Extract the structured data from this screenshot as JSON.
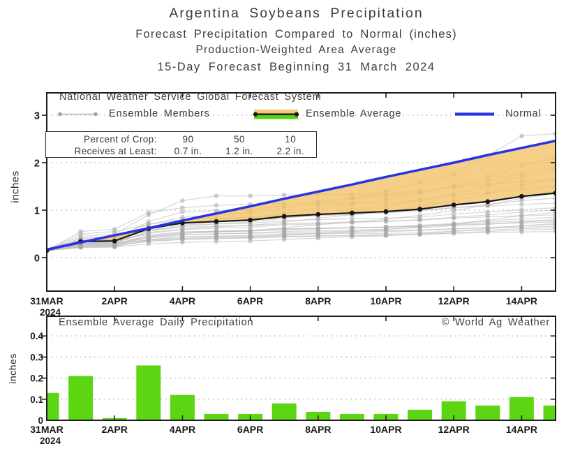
{
  "page": {
    "title": "Argentina Soybeans Precipitation",
    "subtitles": [
      "Forecast Precipitation Compared to Normal (inches)",
      "Production-Weighted Area Average",
      "15-Day Forecast Beginning 31 March 2024"
    ]
  },
  "top_chart": {
    "caption": "National Weather Service Global Forecast System",
    "legend": {
      "members_label": "Ensemble Members",
      "average_label": "Ensemble Average",
      "normal_label": "Normal"
    },
    "crop_box": {
      "row1_label": "Percent of Crop:",
      "row2_label": "Receives at Least:",
      "percents": [
        "90",
        "50",
        "10"
      ],
      "amounts": [
        "0.7 in.",
        "1.2 in.",
        "2.2 in."
      ]
    },
    "ylabel": "inches"
  },
  "bottom_chart": {
    "title": "Ensemble Average Daily Precipitation",
    "watermark": "© World Ag Weather",
    "ylabel": "inches"
  },
  "axis": {
    "x_tick_labels": [
      "31MAR",
      "2APR",
      "4APR",
      "6APR",
      "8APR",
      "10APR",
      "12APR",
      "14APR"
    ],
    "x_year_label": "2024"
  },
  "colors": {
    "normal": "#2633e6",
    "average": "#161616",
    "member_line": "#b6b6b6",
    "member_dot": "#a3a3a3",
    "deficit_fill": "#f3c269",
    "surplus_green": "#54d40f",
    "bar": "#5cd513",
    "grid": "#c4c4c4",
    "frame": "#1c1c1c",
    "text": "#3d3d3d"
  },
  "chart_data": [
    {
      "type": "line",
      "categories": [
        "31MAR",
        "1APR",
        "2APR",
        "3APR",
        "4APR",
        "5APR",
        "6APR",
        "7APR",
        "8APR",
        "9APR",
        "10APR",
        "11APR",
        "12APR",
        "13APR",
        "14APR",
        "15APR"
      ],
      "ylabel": "inches",
      "yticks": [
        0,
        1,
        2,
        3
      ],
      "ylim": [
        -0.7,
        3.45
      ],
      "series": [
        {
          "name": "Normal",
          "color_key": "normal",
          "values": [
            0.17,
            0.32,
            0.47,
            0.62,
            0.78,
            0.93,
            1.08,
            1.24,
            1.39,
            1.54,
            1.7,
            1.85,
            2.0,
            2.16,
            2.31,
            2.46
          ]
        },
        {
          "name": "Ensemble Average",
          "color_key": "average",
          "values": [
            0.15,
            0.34,
            0.35,
            0.61,
            0.73,
            0.76,
            0.79,
            0.87,
            0.91,
            0.94,
            0.97,
            1.02,
            1.11,
            1.18,
            1.29,
            1.36
          ]
        }
      ],
      "ensemble_members": [
        [
          0.15,
          0.29,
          0.31,
          0.37,
          0.41,
          0.42,
          0.43,
          0.45,
          0.46,
          0.47,
          0.48,
          0.49,
          0.51,
          0.53,
          0.54,
          0.55
        ],
        [
          0.15,
          0.24,
          0.25,
          0.34,
          0.38,
          0.4,
          0.41,
          0.43,
          0.45,
          0.46,
          0.47,
          0.49,
          0.52,
          0.55,
          0.58,
          0.6
        ],
        [
          0.15,
          0.22,
          0.23,
          0.37,
          0.44,
          0.45,
          0.45,
          0.49,
          0.5,
          0.51,
          0.51,
          0.52,
          0.56,
          0.58,
          0.61,
          0.63
        ],
        [
          0.15,
          0.33,
          0.35,
          0.43,
          0.48,
          0.5,
          0.51,
          0.53,
          0.54,
          0.56,
          0.57,
          0.58,
          0.61,
          0.63,
          0.64,
          0.66
        ],
        [
          0.15,
          0.26,
          0.27,
          0.38,
          0.44,
          0.45,
          0.47,
          0.5,
          0.51,
          0.53,
          0.55,
          0.57,
          0.6,
          0.63,
          0.67,
          0.7
        ],
        [
          0.15,
          0.21,
          0.22,
          0.29,
          0.32,
          0.34,
          0.35,
          0.38,
          0.41,
          0.44,
          0.46,
          0.5,
          0.55,
          0.61,
          0.67,
          0.72
        ],
        [
          0.15,
          0.36,
          0.39,
          0.48,
          0.54,
          0.56,
          0.57,
          0.59,
          0.61,
          0.63,
          0.64,
          0.66,
          0.69,
          0.71,
          0.73,
          0.75
        ],
        [
          0.15,
          0.28,
          0.29,
          0.41,
          0.48,
          0.5,
          0.52,
          0.55,
          0.57,
          0.58,
          0.6,
          0.63,
          0.67,
          0.7,
          0.75,
          0.78
        ],
        [
          0.15,
          0.25,
          0.26,
          0.44,
          0.54,
          0.55,
          0.56,
          0.61,
          0.62,
          0.63,
          0.64,
          0.66,
          0.7,
          0.74,
          0.77,
          0.8
        ],
        [
          0.15,
          0.29,
          0.3,
          0.44,
          0.51,
          0.54,
          0.56,
          0.59,
          0.61,
          0.63,
          0.65,
          0.68,
          0.72,
          0.77,
          0.82,
          0.85
        ],
        [
          0.15,
          0.41,
          0.45,
          0.56,
          0.64,
          0.66,
          0.68,
          0.71,
          0.73,
          0.75,
          0.77,
          0.79,
          0.83,
          0.86,
          0.88,
          0.9
        ],
        [
          0.15,
          0.23,
          0.25,
          0.35,
          0.39,
          0.41,
          0.43,
          0.47,
          0.51,
          0.55,
          0.59,
          0.65,
          0.71,
          0.79,
          0.89,
          0.95
        ],
        [
          0.15,
          0.32,
          0.34,
          0.51,
          0.59,
          0.62,
          0.64,
          0.69,
          0.71,
          0.74,
          0.76,
          0.8,
          0.85,
          0.9,
          0.96,
          1.0
        ],
        [
          0.15,
          0.29,
          0.3,
          0.56,
          0.69,
          0.71,
          0.72,
          0.78,
          0.8,
          0.82,
          0.83,
          0.85,
          0.92,
          0.96,
          1.01,
          1.05
        ],
        [
          0.15,
          0.5,
          0.55,
          0.7,
          0.8,
          0.83,
          0.85,
          0.89,
          0.92,
          0.95,
          0.97,
          1.0,
          1.05,
          1.09,
          1.12,
          1.15
        ],
        [
          0.15,
          0.37,
          0.39,
          0.61,
          0.72,
          0.76,
          0.79,
          0.84,
          0.88,
          0.91,
          0.94,
          0.99,
          1.05,
          1.12,
          1.2,
          1.25
        ],
        [
          0.15,
          0.27,
          0.29,
          0.45,
          0.51,
          0.55,
          0.57,
          0.63,
          0.69,
          0.75,
          0.81,
          0.89,
          0.99,
          1.11,
          1.25,
          1.35
        ],
        [
          0.15,
          0.35,
          0.38,
          0.76,
          0.96,
          0.99,
          1.0,
          1.1,
          1.12,
          1.15,
          1.16,
          1.2,
          1.3,
          1.37,
          1.45,
          1.5
        ],
        [
          0.15,
          0.3,
          0.33,
          0.53,
          0.6,
          0.65,
          0.68,
          0.75,
          0.83,
          0.9,
          0.98,
          1.08,
          1.2,
          1.35,
          1.53,
          1.65
        ],
        [
          0.15,
          0.32,
          0.35,
          0.58,
          0.66,
          0.71,
          0.75,
          0.83,
          0.92,
          1.0,
          1.09,
          1.2,
          1.34,
          1.51,
          1.71,
          1.85
        ],
        [
          0.15,
          0.35,
          0.38,
          0.64,
          0.74,
          0.79,
          0.83,
          0.93,
          1.03,
          1.13,
          1.22,
          1.36,
          1.52,
          1.71,
          1.94,
          2.1
        ],
        [
          0.15,
          0.45,
          0.5,
          0.9,
          1.2,
          1.3,
          1.3,
          1.32,
          1.33,
          1.33,
          1.35,
          1.4,
          1.48,
          1.55,
          1.6,
          1.65
        ],
        [
          0.15,
          0.55,
          0.6,
          0.95,
          1.05,
          1.1,
          1.12,
          1.15,
          1.18,
          1.25,
          1.3,
          1.38,
          1.5,
          1.62,
          1.78,
          1.9
        ],
        [
          0.15,
          0.4,
          0.45,
          0.7,
          0.85,
          0.9,
          0.95,
          1.05,
          1.15,
          1.25,
          1.4,
          1.58,
          1.76,
          2.15,
          2.56,
          2.61
        ]
      ]
    },
    {
      "type": "bar",
      "categories": [
        "31MAR",
        "1APR",
        "2APR",
        "3APR",
        "4APR",
        "5APR",
        "6APR",
        "7APR",
        "8APR",
        "9APR",
        "10APR",
        "11APR",
        "12APR",
        "13APR",
        "14APR",
        "15APR"
      ],
      "ylabel": "inches",
      "yticks": [
        0,
        0.1,
        0.2,
        0.3,
        0.4
      ],
      "ylim": [
        0,
        0.49
      ],
      "values": [
        0.13,
        0.21,
        0.01,
        0.26,
        0.12,
        0.03,
        0.03,
        0.08,
        0.04,
        0.03,
        0.03,
        0.05,
        0.09,
        0.07,
        0.11,
        0.07
      ]
    }
  ]
}
